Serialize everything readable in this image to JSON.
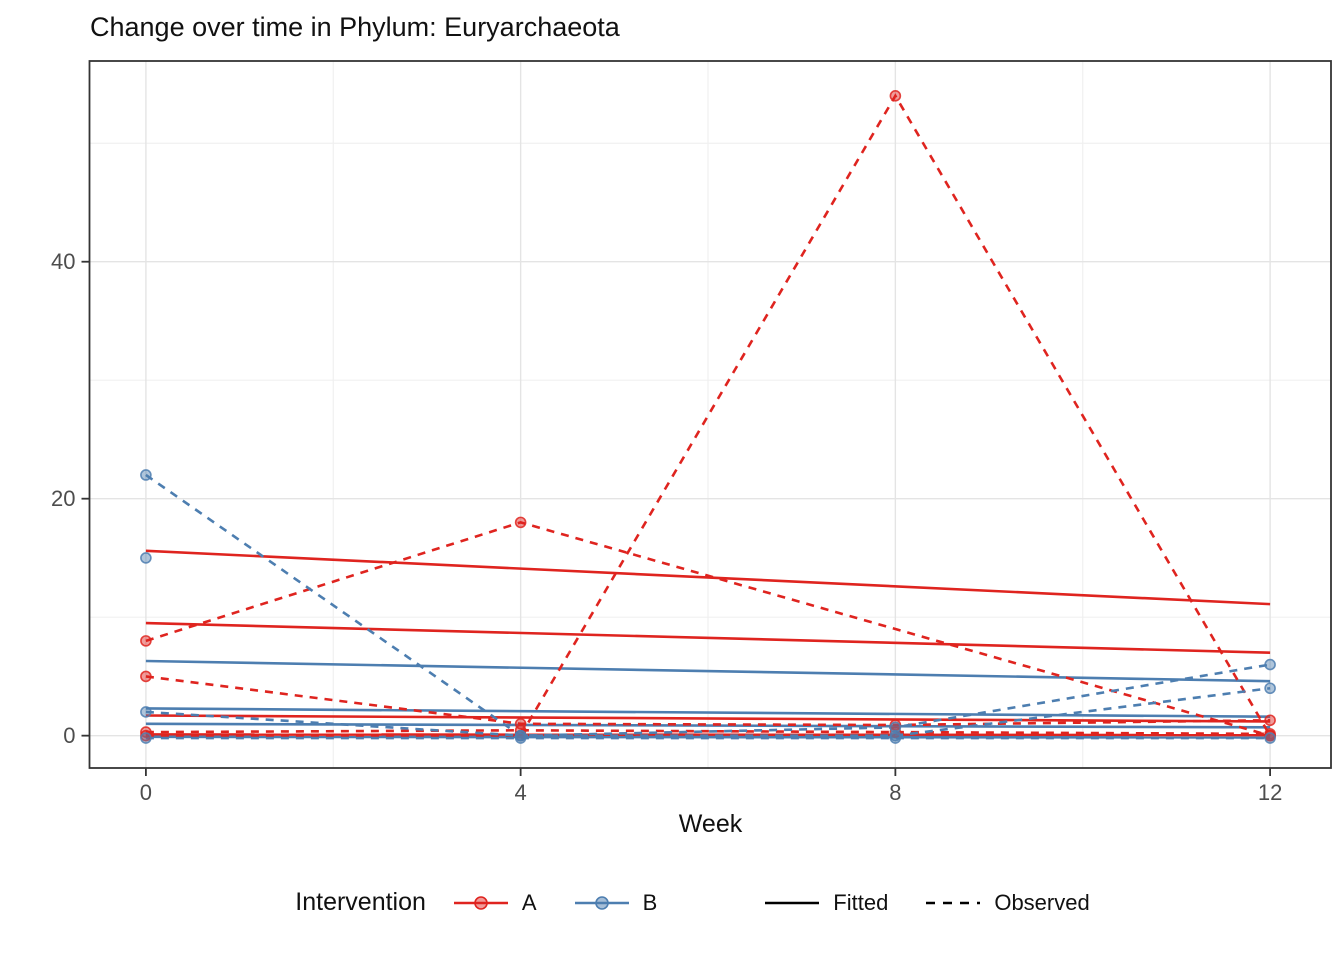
{
  "page": {
    "title": "Change over time in Phylum: Euryarchaeota"
  },
  "chart_data": {
    "type": "line",
    "title": "Change over time in Phylum: Euryarchaeota",
    "xlabel": "Week",
    "ylabel": "",
    "xlim": [
      -0.602,
      12.65
    ],
    "ylim": [
      -2.73,
      56.94
    ],
    "x_ticks": [
      0,
      4,
      8,
      12
    ],
    "x_minor_gridlines": [
      2,
      6,
      10
    ],
    "y_ticks": [
      0,
      20,
      40
    ],
    "y_minor_gridlines": [
      10,
      30,
      50
    ],
    "grid": "on",
    "legend_position": "bottom",
    "colors": {
      "A": "#DF241F",
      "B": "#4D7EB0",
      "linetype_key": "#000000"
    },
    "legend": {
      "title": "Intervention",
      "groups": [
        {
          "label": "A",
          "color": "#DF241F"
        },
        {
          "label": "B",
          "color": "#4D7EB0"
        }
      ],
      "linetypes": [
        {
          "label": "Fitted",
          "style": "solid"
        },
        {
          "label": "Observed",
          "style": "dashed"
        }
      ]
    },
    "series": [
      {
        "group": "A",
        "kind": "fitted",
        "points": [
          [
            0,
            15.6
          ],
          [
            12,
            11.1
          ]
        ]
      },
      {
        "group": "A",
        "kind": "fitted",
        "points": [
          [
            0,
            9.5
          ],
          [
            12,
            7.0
          ]
        ]
      },
      {
        "group": "A",
        "kind": "fitted",
        "points": [
          [
            0,
            1.7
          ],
          [
            12,
            1.2
          ]
        ]
      },
      {
        "group": "A",
        "kind": "fitted",
        "points": [
          [
            0,
            0.1
          ],
          [
            12,
            0.05
          ]
        ]
      },
      {
        "group": "B",
        "kind": "fitted",
        "points": [
          [
            0,
            6.3
          ],
          [
            12,
            4.6
          ]
        ]
      },
      {
        "group": "B",
        "kind": "fitted",
        "points": [
          [
            0,
            2.3
          ],
          [
            12,
            1.6
          ]
        ]
      },
      {
        "group": "B",
        "kind": "fitted",
        "points": [
          [
            0,
            1.0
          ],
          [
            12,
            0.7
          ]
        ]
      },
      {
        "group": "B",
        "kind": "fitted",
        "points": [
          [
            0,
            -0.1
          ],
          [
            12,
            -0.15
          ]
        ]
      },
      {
        "group": "A",
        "kind": "observed",
        "points": [
          [
            0,
            8
          ],
          [
            4,
            18
          ],
          [
            12,
            0
          ]
        ]
      },
      {
        "group": "A",
        "kind": "observed",
        "points": [
          [
            0,
            5
          ],
          [
            4,
            1
          ],
          [
            8,
            0.9
          ],
          [
            12,
            1.3
          ]
        ]
      },
      {
        "group": "A",
        "kind": "observed",
        "points": [
          [
            0,
            0
          ],
          [
            4,
            0
          ],
          [
            8,
            54
          ],
          [
            12,
            0
          ]
        ]
      },
      {
        "group": "A",
        "kind": "observed",
        "points": [
          [
            0,
            0.3
          ],
          [
            4,
            0.45
          ],
          [
            8,
            0.3
          ],
          [
            12,
            0.15
          ]
        ]
      },
      {
        "group": "B",
        "kind": "observed",
        "points": [
          [
            0,
            22
          ],
          [
            4,
            0
          ],
          [
            8,
            0.7
          ],
          [
            12,
            6
          ]
        ]
      },
      {
        "group": "B",
        "kind": "observed",
        "points": [
          [
            0,
            15
          ]
        ]
      },
      {
        "group": "B",
        "kind": "observed",
        "points": [
          [
            0,
            2
          ],
          [
            4,
            0
          ],
          [
            8,
            0
          ],
          [
            12,
            4
          ]
        ]
      },
      {
        "group": "B",
        "kind": "observed",
        "points": [
          [
            0,
            -0.2
          ],
          [
            4,
            -0.2
          ],
          [
            8,
            -0.2
          ],
          [
            12,
            -0.2
          ]
        ]
      }
    ]
  }
}
